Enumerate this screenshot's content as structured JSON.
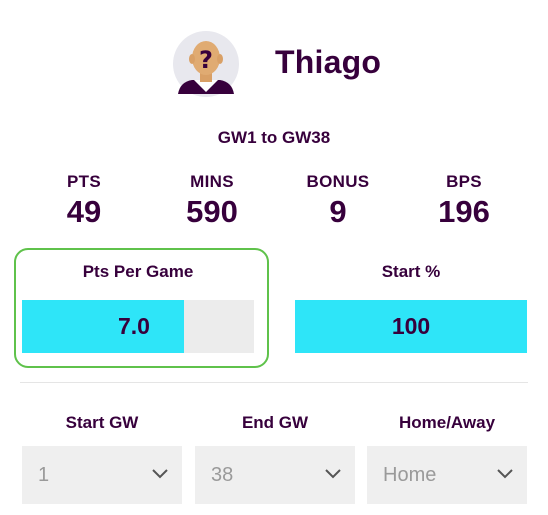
{
  "player": {
    "name": "Thiago",
    "avatar_icon": "unknown-player-icon"
  },
  "range": "GW1 to GW38",
  "stats": [
    {
      "label": "PTS",
      "value": "49"
    },
    {
      "label": "MINS",
      "value": "590"
    },
    {
      "label": "BONUS",
      "value": "9"
    },
    {
      "label": "BPS",
      "value": "196"
    }
  ],
  "pts_per_game": {
    "label": "Pts Per Game",
    "value": "7.0",
    "fill_fraction": 0.7
  },
  "start_pct": {
    "label": "Start %",
    "value": "100",
    "fill_fraction": 1.0
  },
  "filters": {
    "start_gw": {
      "label": "Start GW",
      "value": "1"
    },
    "end_gw": {
      "label": "End GW",
      "value": "38"
    },
    "home_away": {
      "label": "Home/Away",
      "value": "Home"
    }
  },
  "colors": {
    "text": "#37003c",
    "bar_fill": "#2ee5f8",
    "bar_track": "#ececec",
    "highlight_border": "#5fc24b",
    "select_bg": "#efefef"
  }
}
